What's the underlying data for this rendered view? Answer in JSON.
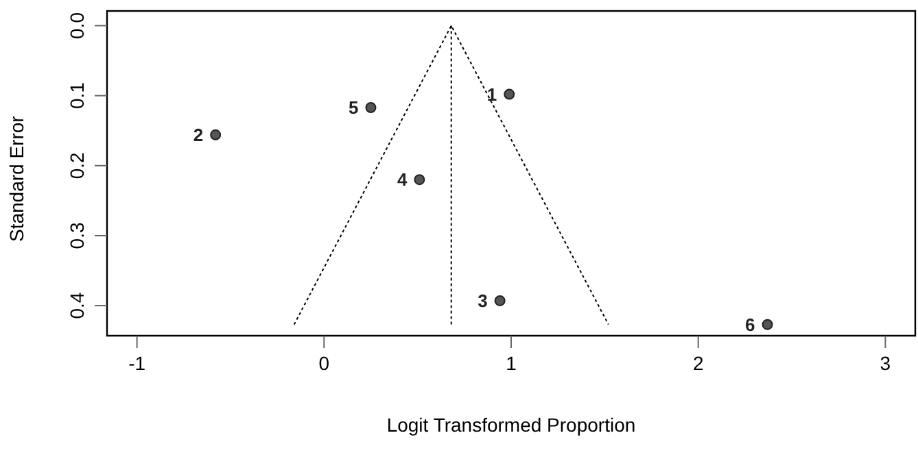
{
  "chart_data": {
    "type": "scatter",
    "xlabel": "Logit Transformed Proportion",
    "ylabel": "Standard Error",
    "xlim": [
      -1.16,
      3.16
    ],
    "xticks": [
      -1,
      0,
      1,
      2,
      3
    ],
    "ylim": [
      0.443,
      -0.021
    ],
    "yticks": [
      {
        "value": 0,
        "label": "0.0"
      },
      0.1,
      0.2,
      0.3,
      0.4
    ],
    "grid": false,
    "legend": false,
    "annotations": [
      {
        "text": "1",
        "x": 0.99,
        "y": 0.098
      },
      {
        "text": "2",
        "x": -0.58,
        "y": 0.156
      },
      {
        "text": "3",
        "x": 0.94,
        "y": 0.393
      },
      {
        "text": "4",
        "x": 0.51,
        "y": 0.22
      },
      {
        "text": "5",
        "x": 0.25,
        "y": 0.117
      },
      {
        "text": "6",
        "x": 2.37,
        "y": 0.427
      }
    ],
    "series": [
      {
        "color": "#555555",
        "marker": "circle",
        "x": [
          0.99,
          -0.58,
          0.94,
          0.51,
          0.25,
          2.37
        ],
        "values": [
          0.098,
          0.156,
          0.393,
          0.22,
          0.117,
          0.427
        ]
      },
      {
        "type": "line",
        "color": "#000000",
        "marker": "none",
        "line_style": "dotted",
        "x": [
          -0.16,
          0.68,
          1.52
        ],
        "values": [
          0.427,
          0,
          0.427
        ]
      },
      {
        "type": "line",
        "color": "#000000",
        "marker": "none",
        "line_style": "dotted",
        "x": [
          0.68,
          0.68
        ],
        "values": [
          0,
          0.427
        ]
      }
    ]
  }
}
